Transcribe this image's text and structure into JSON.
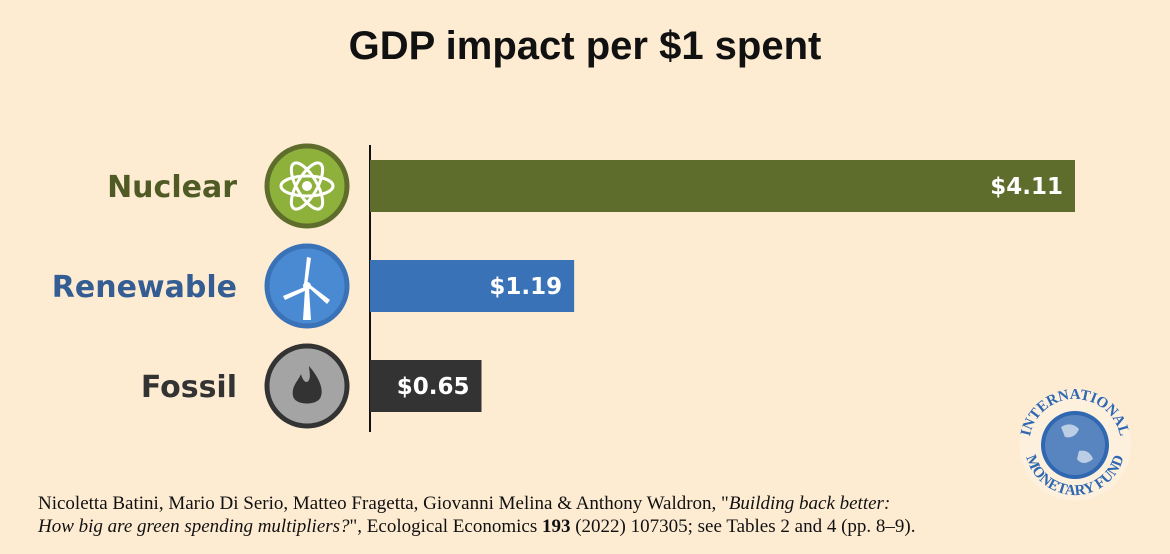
{
  "chart_data": {
    "type": "bar",
    "orientation": "horizontal",
    "title": "GDP impact per $1 spent",
    "categories": [
      "Nuclear",
      "Renewable",
      "Fossil"
    ],
    "values": [
      4.11,
      1.19,
      0.65
    ],
    "data_labels": [
      "$4.11",
      "$1.19",
      "$0.65"
    ],
    "icons": [
      "atom-icon",
      "wind-turbine-icon",
      "flame-icon"
    ],
    "colors": {
      "bars": [
        "#5e6c2c",
        "#3a72b8",
        "#333333"
      ],
      "labels": [
        "#4f5a25",
        "#335d93",
        "#333333"
      ],
      "icon_fill": [
        "#8db13b",
        "#4a8ad3",
        "#a4a4a4"
      ]
    },
    "xlim": [
      0,
      4.11
    ],
    "grid": false,
    "xlabel": "",
    "ylabel": ""
  },
  "citation": {
    "authors": "Nicoletta Batini, Mario Di Serio, Matteo Fragetta, Giovanni Melina & Anthony Waldron, \"",
    "title_part1": "Building back better:",
    "title_part2": "How big are green spending multipliers?",
    "after_title": "\", Ecological Economics ",
    "volume": "193",
    "rest": " (2022) 107305; see Tables 2 and 4 (pp. 8–9)."
  },
  "logo": {
    "text": "INTERNATIONAL MONETARY FUND",
    "color": "#2f67b1"
  }
}
